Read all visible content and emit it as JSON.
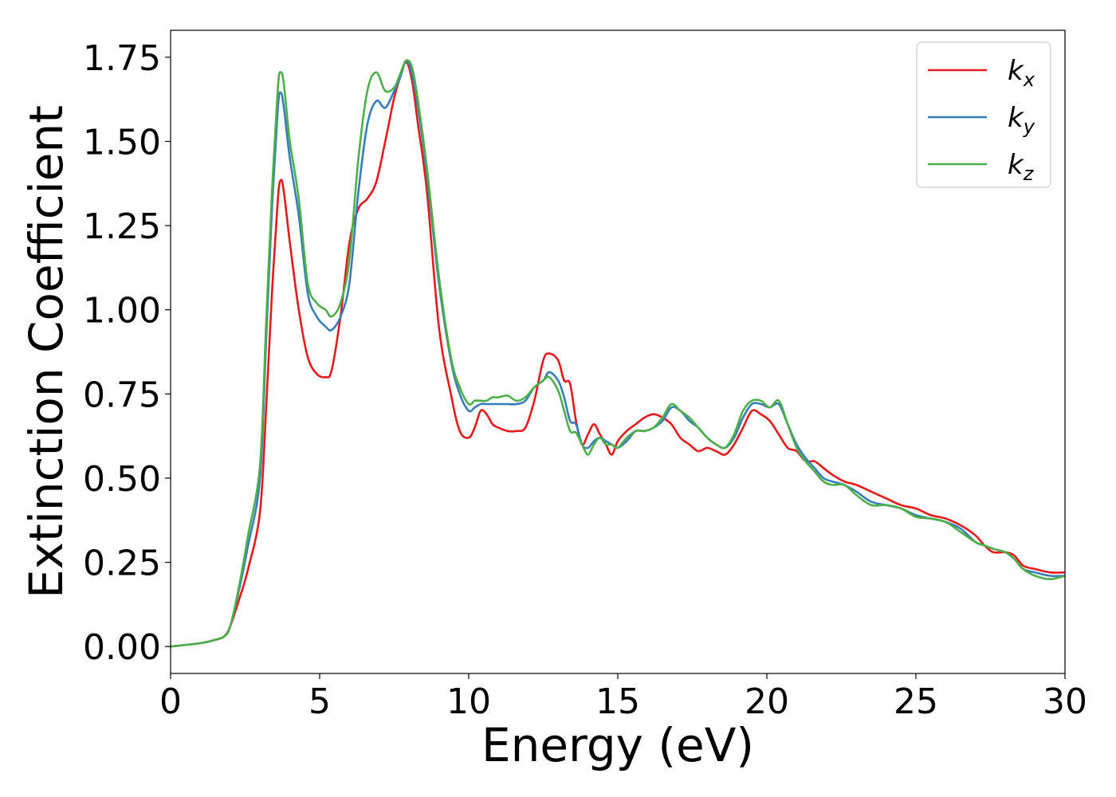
{
  "chart_data": {
    "type": "line",
    "xlabel": "Energy (eV)",
    "ylabel": "Extinction Coefficient",
    "xlim": [
      0,
      30
    ],
    "ylim": [
      -0.08,
      1.83
    ],
    "xticks": [
      0,
      5,
      10,
      15,
      20,
      25,
      30
    ],
    "xtick_labels": [
      "0",
      "5",
      "10",
      "15",
      "20",
      "25",
      "30"
    ],
    "yticks": [
      0.0,
      0.25,
      0.5,
      0.75,
      1.0,
      1.25,
      1.5,
      1.75
    ],
    "ytick_labels": [
      "0.00",
      "0.25",
      "0.50",
      "0.75",
      "1.00",
      "1.25",
      "1.50",
      "1.75"
    ],
    "grid": false,
    "legend_position": "top-right",
    "series": [
      {
        "name": "k",
        "subscript": "x",
        "color": "#e41a1c",
        "x": [
          0,
          1,
          1.5,
          1.8,
          2,
          2.3,
          2.6,
          3,
          3.2,
          3.4,
          3.6,
          3.7,
          3.8,
          4,
          4.3,
          4.6,
          4.9,
          5.2,
          5.4,
          5.7,
          6,
          6.3,
          6.6,
          6.9,
          7.2,
          7.5,
          7.7,
          7.9,
          8.1,
          8.3,
          8.6,
          9,
          9.4,
          9.7,
          10,
          10.2,
          10.4,
          10.6,
          10.8,
          11,
          11.3,
          11.6,
          11.9,
          12.2,
          12.5,
          12.7,
          13,
          13.2,
          13.4,
          13.6,
          13.8,
          14,
          14.2,
          14.4,
          14.6,
          14.8,
          15,
          15.3,
          15.6,
          15.9,
          16.2,
          16.5,
          16.8,
          17.1,
          17.4,
          17.7,
          18,
          18.3,
          18.6,
          18.9,
          19.2,
          19.5,
          19.8,
          20.1,
          20.4,
          20.7,
          21,
          21.3,
          21.6,
          21.9,
          22.2,
          22.6,
          23,
          23.5,
          24,
          24.5,
          25,
          25.5,
          26,
          26.5,
          27,
          27.3,
          27.6,
          28,
          28.3,
          28.6,
          29,
          29.5,
          30
        ],
        "y": [
          0,
          0.01,
          0.02,
          0.03,
          0.06,
          0.14,
          0.23,
          0.4,
          0.7,
          1.05,
          1.33,
          1.385,
          1.35,
          1.2,
          1.0,
          0.86,
          0.81,
          0.8,
          0.82,
          0.98,
          1.2,
          1.3,
          1.33,
          1.38,
          1.5,
          1.63,
          1.69,
          1.735,
          1.68,
          1.55,
          1.35,
          0.95,
          0.75,
          0.64,
          0.62,
          0.65,
          0.7,
          0.69,
          0.66,
          0.65,
          0.64,
          0.64,
          0.65,
          0.73,
          0.85,
          0.87,
          0.85,
          0.79,
          0.78,
          0.67,
          0.6,
          0.63,
          0.66,
          0.63,
          0.6,
          0.57,
          0.61,
          0.64,
          0.66,
          0.68,
          0.69,
          0.68,
          0.66,
          0.62,
          0.6,
          0.58,
          0.59,
          0.58,
          0.57,
          0.6,
          0.65,
          0.7,
          0.69,
          0.67,
          0.63,
          0.59,
          0.58,
          0.55,
          0.55,
          0.53,
          0.51,
          0.49,
          0.48,
          0.46,
          0.44,
          0.42,
          0.41,
          0.39,
          0.38,
          0.36,
          0.33,
          0.3,
          0.28,
          0.28,
          0.27,
          0.24,
          0.23,
          0.22,
          0.22
        ]
      },
      {
        "name": "k",
        "subscript": "y",
        "color": "#377eb8",
        "x": [
          0,
          1,
          1.5,
          1.8,
          2,
          2.3,
          2.6,
          3,
          3.2,
          3.4,
          3.6,
          3.7,
          3.8,
          4,
          4.3,
          4.6,
          4.9,
          5.2,
          5.4,
          5.7,
          6,
          6.3,
          6.6,
          6.9,
          7.2,
          7.5,
          7.7,
          7.9,
          8.1,
          8.3,
          8.6,
          9,
          9.4,
          9.7,
          10,
          10.2,
          10.4,
          10.6,
          10.8,
          11,
          11.3,
          11.6,
          11.9,
          12.2,
          12.5,
          12.7,
          13,
          13.2,
          13.4,
          13.6,
          13.8,
          14,
          14.2,
          14.4,
          14.6,
          14.8,
          15,
          15.3,
          15.6,
          15.9,
          16.2,
          16.5,
          16.8,
          17.1,
          17.4,
          17.7,
          18,
          18.3,
          18.6,
          18.9,
          19.2,
          19.5,
          19.8,
          20.1,
          20.4,
          20.7,
          21,
          21.3,
          21.6,
          21.9,
          22.2,
          22.6,
          23,
          23.5,
          24,
          24.5,
          25,
          25.5,
          26,
          26.5,
          27,
          27.3,
          27.6,
          28,
          28.3,
          28.6,
          29,
          29.5,
          30
        ],
        "y": [
          0,
          0.01,
          0.02,
          0.03,
          0.06,
          0.17,
          0.3,
          0.5,
          0.9,
          1.3,
          1.6,
          1.645,
          1.6,
          1.45,
          1.28,
          1.05,
          0.98,
          0.95,
          0.94,
          0.98,
          1.08,
          1.35,
          1.55,
          1.62,
          1.6,
          1.65,
          1.69,
          1.74,
          1.7,
          1.6,
          1.4,
          1.08,
          0.85,
          0.75,
          0.7,
          0.71,
          0.72,
          0.72,
          0.72,
          0.72,
          0.72,
          0.72,
          0.73,
          0.77,
          0.79,
          0.815,
          0.79,
          0.74,
          0.67,
          0.66,
          0.6,
          0.59,
          0.61,
          0.62,
          0.61,
          0.6,
          0.59,
          0.61,
          0.64,
          0.64,
          0.65,
          0.67,
          0.71,
          0.7,
          0.67,
          0.65,
          0.62,
          0.6,
          0.59,
          0.62,
          0.68,
          0.72,
          0.72,
          0.71,
          0.72,
          0.66,
          0.6,
          0.56,
          0.53,
          0.5,
          0.49,
          0.48,
          0.46,
          0.43,
          0.42,
          0.41,
          0.39,
          0.38,
          0.37,
          0.35,
          0.31,
          0.3,
          0.29,
          0.28,
          0.26,
          0.23,
          0.22,
          0.21,
          0.21
        ]
      },
      {
        "name": "k",
        "subscript": "z",
        "color": "#4daf4a",
        "x": [
          0,
          1,
          1.5,
          1.8,
          2,
          2.3,
          2.6,
          3,
          3.2,
          3.4,
          3.6,
          3.7,
          3.8,
          4,
          4.3,
          4.6,
          4.9,
          5.2,
          5.4,
          5.7,
          6,
          6.3,
          6.6,
          6.9,
          7.2,
          7.5,
          7.7,
          7.9,
          8.1,
          8.3,
          8.6,
          9,
          9.4,
          9.7,
          10,
          10.2,
          10.4,
          10.6,
          10.8,
          11,
          11.3,
          11.6,
          11.9,
          12.2,
          12.5,
          12.7,
          13,
          13.2,
          13.4,
          13.6,
          13.8,
          14,
          14.2,
          14.4,
          14.6,
          14.8,
          15,
          15.3,
          15.6,
          15.9,
          16.2,
          16.5,
          16.8,
          17.1,
          17.4,
          17.7,
          18,
          18.3,
          18.6,
          18.9,
          19.2,
          19.5,
          19.8,
          20.1,
          20.4,
          20.7,
          21,
          21.3,
          21.6,
          21.9,
          22.2,
          22.6,
          23,
          23.5,
          24,
          24.5,
          25,
          25.5,
          26,
          26.5,
          27,
          27.3,
          27.6,
          28,
          28.3,
          28.6,
          29,
          29.5,
          30
        ],
        "y": [
          0,
          0.01,
          0.02,
          0.03,
          0.06,
          0.18,
          0.33,
          0.54,
          0.95,
          1.35,
          1.66,
          1.705,
          1.67,
          1.5,
          1.33,
          1.08,
          1.02,
          1.0,
          0.98,
          1.02,
          1.15,
          1.45,
          1.65,
          1.705,
          1.65,
          1.66,
          1.7,
          1.74,
          1.72,
          1.62,
          1.42,
          1.1,
          0.86,
          0.77,
          0.72,
          0.73,
          0.73,
          0.73,
          0.74,
          0.74,
          0.745,
          0.73,
          0.74,
          0.77,
          0.79,
          0.8,
          0.76,
          0.7,
          0.64,
          0.635,
          0.6,
          0.57,
          0.6,
          0.62,
          0.6,
          0.6,
          0.59,
          0.62,
          0.64,
          0.64,
          0.65,
          0.68,
          0.72,
          0.7,
          0.68,
          0.65,
          0.62,
          0.6,
          0.59,
          0.63,
          0.7,
          0.73,
          0.73,
          0.71,
          0.73,
          0.66,
          0.59,
          0.55,
          0.52,
          0.49,
          0.48,
          0.48,
          0.45,
          0.42,
          0.42,
          0.41,
          0.385,
          0.38,
          0.37,
          0.34,
          0.31,
          0.3,
          0.29,
          0.28,
          0.26,
          0.23,
          0.21,
          0.2,
          0.21
        ]
      }
    ]
  }
}
